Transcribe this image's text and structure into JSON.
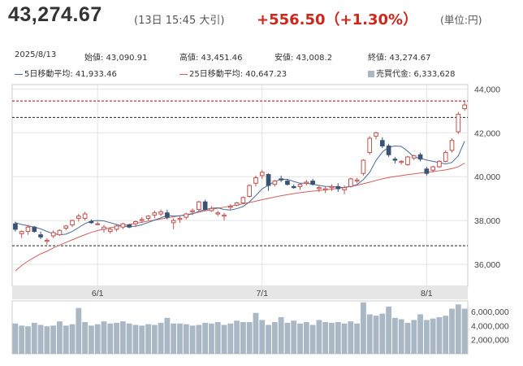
{
  "header": {
    "price": "43,274.67",
    "timestamp": "(13日 15:45 大引)",
    "change": "+556.50（+1.30%）",
    "unit": "(単位:円)"
  },
  "stats": {
    "date": "2025/8/13",
    "open": "始値: 43,090.91",
    "high": "高値: 43,451.46",
    "low": "安値: 43,008.2",
    "close": "終値: 43,274.67",
    "ma5": "5日移動平均: 41,933.46",
    "ma25": "25日移動平均: 40,647.23",
    "turnover": "売買代金: 6,333,628"
  },
  "colors": {
    "up": "#c0504d",
    "down": "#3b5373",
    "ma5": "#4a6a9a",
    "ma25": "#d06060",
    "volume": "#aab7c4",
    "ref_red": "#c00000",
    "ref_black": "#222222"
  },
  "chart_data": {
    "type": "candlestick",
    "ylim": [
      35000,
      44200
    ],
    "yticks": [
      "44,000",
      "42,000",
      "40,000",
      "38,000",
      "36,000"
    ],
    "ytick_values": [
      44000,
      42000,
      40000,
      38000,
      36000
    ],
    "xticks": [
      "6/1",
      "7/1",
      "8/1"
    ],
    "xtick_index": [
      13,
      39,
      65
    ],
    "reference_lines": [
      {
        "value": 43451.46,
        "style": "dashed",
        "color": "red"
      },
      {
        "value": 42700,
        "style": "dashed",
        "color": "black"
      },
      {
        "value": 36850,
        "style": "dashed",
        "color": "black"
      }
    ],
    "ohlc": [
      [
        37850,
        37950,
        37500,
        37600
      ],
      [
        37400,
        37550,
        37200,
        37500
      ],
      [
        37500,
        37800,
        37350,
        37700
      ],
      [
        37700,
        37750,
        37450,
        37500
      ],
      [
        37350,
        37500,
        37150,
        37250
      ],
      [
        37050,
        37200,
        36900,
        37100
      ],
      [
        37300,
        37550,
        37200,
        37450
      ],
      [
        37350,
        37600,
        37300,
        37550
      ],
      [
        37650,
        37800,
        37550,
        37750
      ],
      [
        37800,
        38050,
        37700,
        38000
      ],
      [
        38100,
        38300,
        37950,
        38200
      ],
      [
        38100,
        38400,
        38000,
        38300
      ],
      [
        37950,
        38050,
        37850,
        37900
      ],
      [
        37850,
        37950,
        37800,
        37850
      ],
      [
        37600,
        37800,
        37450,
        37700
      ],
      [
        37500,
        37700,
        37400,
        37600
      ],
      [
        37600,
        37800,
        37500,
        37750
      ],
      [
        37700,
        37900,
        37600,
        37850
      ],
      [
        37800,
        37850,
        37650,
        37700
      ],
      [
        37850,
        38000,
        37700,
        37950
      ],
      [
        38000,
        38150,
        37900,
        38050
      ],
      [
        38100,
        38250,
        38000,
        38200
      ],
      [
        38250,
        38450,
        38100,
        38350
      ],
      [
        38300,
        38500,
        38200,
        38400
      ],
      [
        38350,
        38500,
        38050,
        38150
      ],
      [
        37900,
        38100,
        37600,
        38000
      ],
      [
        38050,
        38200,
        37900,
        38100
      ],
      [
        38150,
        38350,
        38050,
        38300
      ],
      [
        38400,
        38550,
        38250,
        38450
      ],
      [
        38500,
        38900,
        38450,
        38850
      ],
      [
        38850,
        38950,
        38450,
        38500
      ],
      [
        38450,
        38650,
        38400,
        38550
      ],
      [
        38300,
        38450,
        38200,
        38350
      ],
      [
        38200,
        38350,
        38000,
        38250
      ],
      [
        38600,
        38750,
        38500,
        38650
      ],
      [
        38700,
        38850,
        38650,
        38800
      ],
      [
        38800,
        39100,
        38750,
        39050
      ],
      [
        39100,
        39650,
        39050,
        39600
      ],
      [
        39700,
        40050,
        39550,
        39950
      ],
      [
        40050,
        40300,
        39900,
        40200
      ],
      [
        40100,
        40150,
        39350,
        39600
      ],
      [
        39650,
        39850,
        39550,
        39800
      ],
      [
        39900,
        40050,
        39750,
        39850
      ],
      [
        39800,
        39900,
        39600,
        39650
      ],
      [
        39550,
        39650,
        39450,
        39500
      ],
      [
        39550,
        39700,
        39400,
        39650
      ],
      [
        39700,
        39850,
        39600,
        39750
      ],
      [
        39800,
        39900,
        39600,
        39650
      ],
      [
        39450,
        39600,
        39300,
        39500
      ],
      [
        39400,
        39550,
        39250,
        39450
      ],
      [
        39500,
        39650,
        39350,
        39550
      ],
      [
        39550,
        39700,
        39300,
        39450
      ],
      [
        39400,
        39600,
        39200,
        39500
      ],
      [
        39550,
        39950,
        39500,
        39900
      ],
      [
        39800,
        39950,
        39700,
        39850
      ],
      [
        40150,
        40800,
        40050,
        40750
      ],
      [
        41100,
        41850,
        41000,
        41750
      ],
      [
        41850,
        42050,
        41700,
        42000
      ],
      [
        41650,
        41800,
        41300,
        41400
      ],
      [
        41400,
        41500,
        40900,
        41000
      ],
      [
        40800,
        40900,
        40600,
        40750
      ],
      [
        40650,
        40750,
        40550,
        40700
      ],
      [
        40550,
        40950,
        40500,
        40900
      ],
      [
        40850,
        41000,
        40750,
        40950
      ],
      [
        41000,
        41100,
        40700,
        40800
      ],
      [
        40350,
        40450,
        40050,
        40150
      ],
      [
        40300,
        40500,
        40200,
        40450
      ],
      [
        40450,
        40750,
        40400,
        40700
      ],
      [
        40700,
        41200,
        40650,
        41100
      ],
      [
        41200,
        41750,
        41100,
        41650
      ],
      [
        42050,
        42950,
        41950,
        42850
      ],
      [
        43100,
        43450,
        43000,
        43270
      ]
    ],
    "ma5": [
      37900,
      37820,
      37760,
      37700,
      37620,
      37500,
      37400,
      37350,
      37380,
      37500,
      37680,
      37860,
      37980,
      38000,
      37980,
      37900,
      37820,
      37740,
      37720,
      37740,
      37810,
      37910,
      38020,
      38120,
      38240,
      38200,
      38220,
      38250,
      38300,
      38420,
      38500,
      38560,
      38580,
      38500,
      38480,
      38540,
      38640,
      38850,
      39140,
      39440,
      39620,
      39780,
      39880,
      39880,
      39780,
      39700,
      39700,
      39660,
      39600,
      39560,
      39550,
      39520,
      39500,
      39560,
      39640,
      39870,
      40200,
      40740,
      41120,
      41350,
      41400,
      41380,
      41160,
      40900,
      40840,
      40760,
      40700,
      40640,
      40580,
      40650,
      40950,
      41620
    ],
    "ma25": [
      35700,
      35950,
      36150,
      36320,
      36480,
      36600,
      36750,
      36880,
      37000,
      37120,
      37240,
      37350,
      37460,
      37540,
      37610,
      37670,
      37720,
      37770,
      37820,
      37870,
      37920,
      37970,
      38020,
      38070,
      38120,
      38170,
      38220,
      38270,
      38320,
      38380,
      38440,
      38500,
      38560,
      38610,
      38660,
      38710,
      38760,
      38820,
      38880,
      38950,
      39010,
      39070,
      39130,
      39180,
      39230,
      39270,
      39310,
      39340,
      39370,
      39400,
      39430,
      39470,
      39510,
      39560,
      39610,
      39680,
      39750,
      39830,
      39900,
      39960,
      40010,
      40050,
      40090,
      40130,
      40170,
      40200,
      40230,
      40270,
      40310,
      40370,
      40450,
      40620
    ],
    "volume_ticks": [
      "6,000,000",
      "4,000,000",
      "2,000,000"
    ],
    "volume_tick_values": [
      6000000,
      4000000,
      2000000
    ],
    "volume_max": 7500000,
    "volume": [
      4300000,
      4000000,
      3900000,
      4400000,
      4100000,
      3900000,
      4000000,
      4600000,
      4000000,
      4200000,
      6500000,
      4500000,
      4000000,
      4200000,
      4600000,
      4300000,
      4400000,
      4600000,
      4300000,
      4100000,
      4000000,
      4200000,
      4100000,
      4400000,
      5100000,
      4300000,
      4300000,
      4200000,
      4000000,
      4100000,
      4400000,
      4300000,
      4500000,
      4100000,
      4300000,
      4700000,
      4500000,
      4500000,
      5800000,
      4800000,
      4100000,
      4500000,
      5200000,
      4400000,
      4700000,
      4300000,
      4500000,
      4100000,
      4800000,
      4500000,
      4400000,
      4500000,
      4300000,
      4600000,
      4300000,
      7300000,
      5600000,
      5400000,
      5700000,
      6700000,
      5100000,
      4900000,
      4400000,
      4800000,
      5600000,
      4800000,
      5000000,
      5200000,
      5400000,
      6400000,
      7000000,
      6400000
    ]
  }
}
